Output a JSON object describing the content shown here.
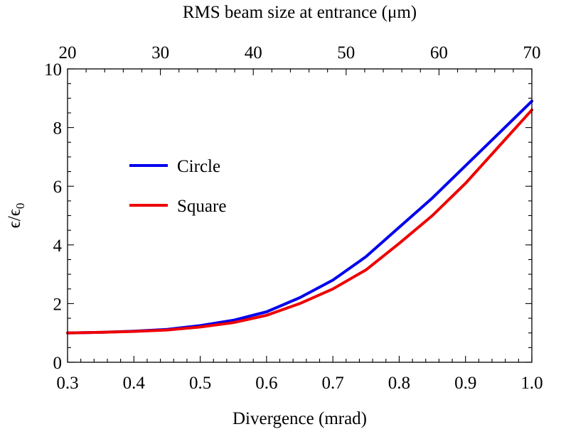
{
  "chart_data": {
    "type": "line",
    "xlabel": "Divergence (mrad)",
    "top_xlabel": "RMS beam size at entrance (μm)",
    "ylabel_main": "ϵ/ϵ",
    "ylabel_sub": "0",
    "xlim": [
      0.3,
      1.0
    ],
    "ylim": [
      0,
      10
    ],
    "top_xlim": [
      20,
      70
    ],
    "x_ticks": [
      "0.3",
      "0.4",
      "0.5",
      "0.6",
      "0.7",
      "0.8",
      "0.9",
      "1.0"
    ],
    "y_ticks": [
      "0",
      "2",
      "4",
      "6",
      "8",
      "10"
    ],
    "top_x_ticks": [
      "20",
      "30",
      "40",
      "50",
      "60",
      "70"
    ],
    "grid": false,
    "legend_position": "upper-left",
    "series": [
      {
        "name": "Circle",
        "color": "#0000ee",
        "x": [
          0.3,
          0.35,
          0.4,
          0.45,
          0.5,
          0.55,
          0.6,
          0.65,
          0.7,
          0.75,
          0.8,
          0.85,
          0.9,
          0.95,
          1.0
        ],
        "y": [
          1.0,
          1.02,
          1.06,
          1.12,
          1.25,
          1.43,
          1.72,
          2.2,
          2.8,
          3.6,
          4.6,
          5.6,
          6.7,
          7.8,
          8.9
        ]
      },
      {
        "name": "Square",
        "color": "#ee0000",
        "x": [
          0.3,
          0.35,
          0.4,
          0.45,
          0.5,
          0.55,
          0.6,
          0.65,
          0.7,
          0.75,
          0.8,
          0.85,
          0.9,
          0.95,
          1.0
        ],
        "y": [
          1.0,
          1.02,
          1.05,
          1.1,
          1.2,
          1.35,
          1.6,
          2.0,
          2.5,
          3.15,
          4.05,
          5.0,
          6.1,
          7.35,
          8.6
        ]
      }
    ]
  }
}
